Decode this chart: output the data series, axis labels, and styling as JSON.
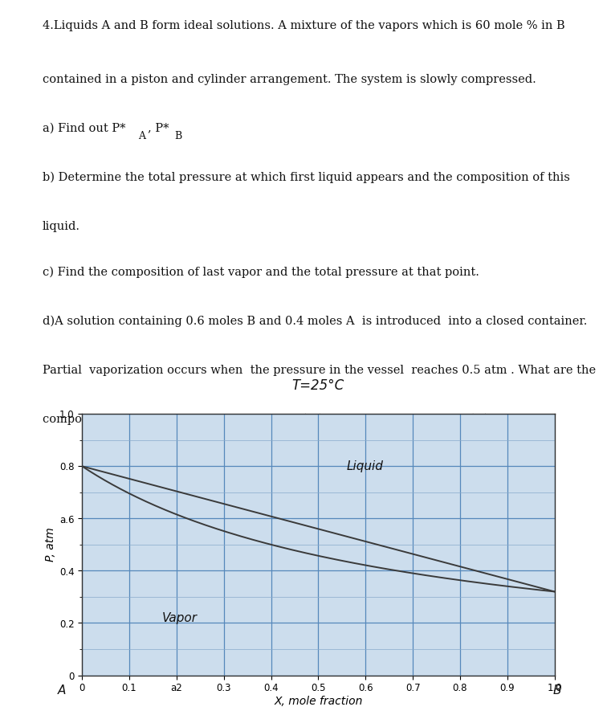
{
  "title_text": "T=25°C",
  "question_lines": [
    "4.Liquids A and B form ideal solutions. A mixture of the vapors which is 60 mole % in B",
    "contained in a piston and cylinder arrangement. The system is slowly compressed.",
    "a) Find out P*ₐ, P*ₙ",
    "b) Determine the total pressure at which first liquid appears and the composition of this",
    "liquid.",
    "c) Find the composition of last vapor and the total pressure at that point.",
    "d)A solution containing 0.6 moles B and 0.4 moles A  is introduced  into a closed container.",
    "Partial  vaporization occurs when  the pressure in the vessel  reaches 0.5 atm . What are the",
    "compositions and the amount of the vapor  (nᵥ)  and the residual liquid (nₗ)"
  ],
  "P_A_star": 0.8,
  "P_B_star": 0.32,
  "xlabel": "X, mole fraction",
  "ylabel": "P, atm",
  "label_A": "A",
  "label_B": "B",
  "liquid_label": "Liquid",
  "vapor_label": "Vapor",
  "xlim": [
    0,
    1.0
  ],
  "ylim": [
    0,
    1.0
  ],
  "xticks": [
    0,
    0.1,
    0.2,
    0.3,
    0.4,
    0.5,
    0.6,
    0.7,
    0.8,
    0.9,
    1.0
  ],
  "xtick_labels": [
    "0",
    "0.1",
    "a2",
    "0.3",
    "0.4",
    "0.5",
    "0.6",
    "0.7",
    "0.8",
    "0.9",
    "1.0"
  ],
  "yticks": [
    0,
    0.2,
    0.4,
    0.6,
    0.8,
    1.0
  ],
  "ytick_labels": [
    "0",
    "0.2",
    "0.4",
    "a.6",
    "0.8",
    "1.0"
  ],
  "line_color": "#3a3a3a",
  "grid_color_major": "#5588bb",
  "grid_color_minor": "#88aacb",
  "bg_color": "#ccdded",
  "text_color": "#111111",
  "fig_bg": "#ffffff"
}
